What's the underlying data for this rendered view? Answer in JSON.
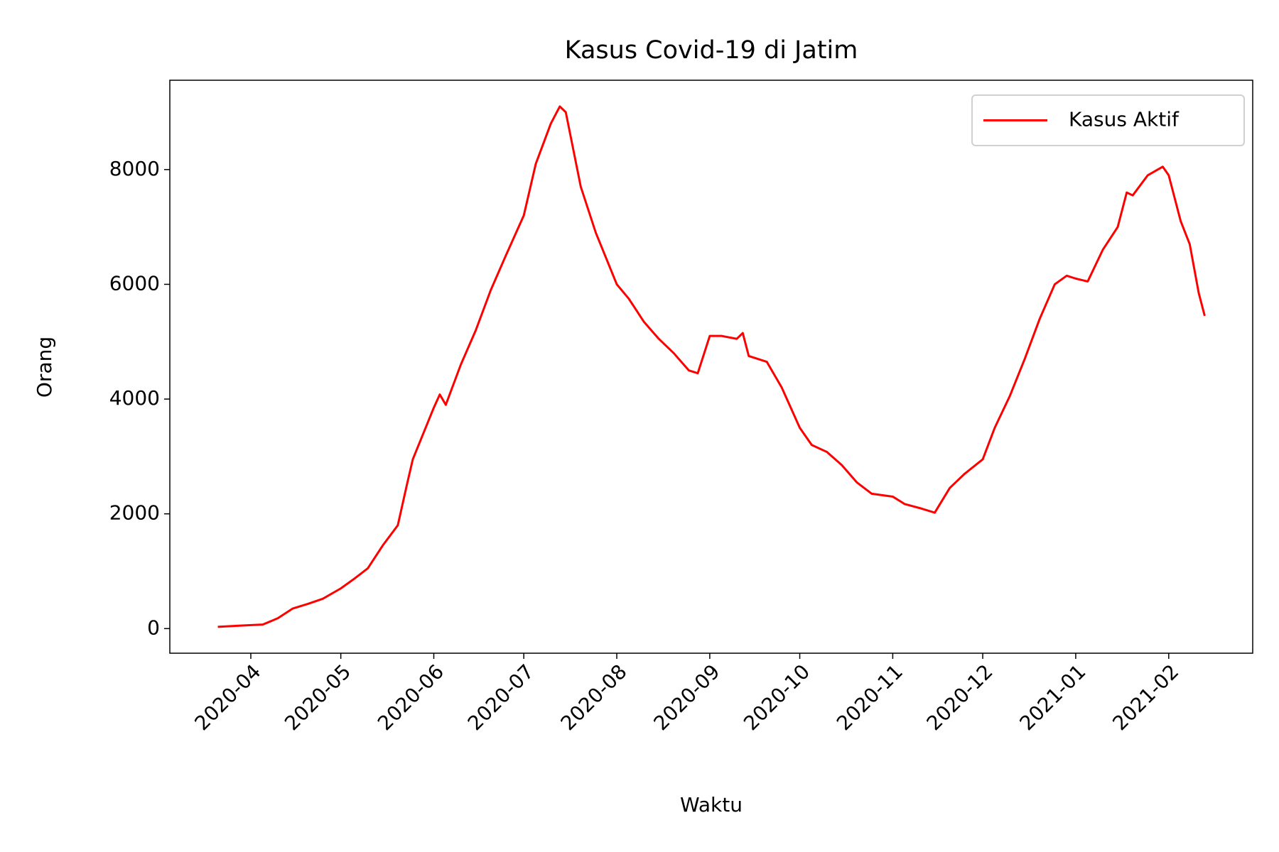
{
  "chart_data": {
    "type": "line",
    "title": "Kasus Covid-19 di Jatim",
    "xlabel": "Waktu",
    "ylabel": "Orang",
    "x": [
      "2020-03-21",
      "2020-03-28",
      "2020-04-05",
      "2020-04-10",
      "2020-04-15",
      "2020-04-20",
      "2020-04-25",
      "2020-05-01",
      "2020-05-05",
      "2020-05-10",
      "2020-05-15",
      "2020-05-20",
      "2020-05-23",
      "2020-05-25",
      "2020-06-01",
      "2020-06-03",
      "2020-06-05",
      "2020-06-10",
      "2020-06-15",
      "2020-06-20",
      "2020-06-25",
      "2020-07-01",
      "2020-07-05",
      "2020-07-10",
      "2020-07-13",
      "2020-07-15",
      "2020-07-20",
      "2020-07-25",
      "2020-08-01",
      "2020-08-05",
      "2020-08-10",
      "2020-08-15",
      "2020-08-20",
      "2020-08-25",
      "2020-08-28",
      "2020-09-01",
      "2020-09-05",
      "2020-09-10",
      "2020-09-12",
      "2020-09-14",
      "2020-09-20",
      "2020-09-25",
      "2020-10-01",
      "2020-10-05",
      "2020-10-10",
      "2020-10-15",
      "2020-10-20",
      "2020-10-25",
      "2020-11-01",
      "2020-11-05",
      "2020-11-10",
      "2020-11-15",
      "2020-11-20",
      "2020-11-25",
      "2020-12-01",
      "2020-12-05",
      "2020-12-10",
      "2020-12-15",
      "2020-12-20",
      "2020-12-25",
      "2020-12-29",
      "2021-01-01",
      "2021-01-05",
      "2021-01-10",
      "2021-01-15",
      "2021-01-18",
      "2021-01-20",
      "2021-01-25",
      "2021-01-30",
      "2021-02-01",
      "2021-02-05",
      "2021-02-08",
      "2021-02-11",
      "2021-02-13"
    ],
    "series": [
      {
        "name": "Kasus Aktif",
        "color": "#ff0000",
        "values": [
          30,
          50,
          70,
          180,
          350,
          430,
          520,
          700,
          850,
          1050,
          1450,
          1800,
          2500,
          2950,
          3850,
          4080,
          3900,
          4600,
          5200,
          5900,
          6500,
          7200,
          8100,
          8800,
          9100,
          9000,
          7700,
          6900,
          6000,
          5750,
          5350,
          5050,
          4800,
          4500,
          4450,
          5100,
          5100,
          5050,
          5150,
          4750,
          4650,
          4200,
          3500,
          3200,
          3080,
          2850,
          2550,
          2350,
          2300,
          2170,
          2100,
          2020,
          2450,
          2700,
          2950,
          3500,
          4050,
          4700,
          5400,
          6000,
          6150,
          6100,
          6050,
          6600,
          7000,
          7600,
          7550,
          7900,
          8050,
          7900,
          7100,
          6700,
          5850,
          5450
        ]
      }
    ],
    "xlim": [
      "2020-03-05",
      "2021-03-01"
    ],
    "xticks": [
      {
        "value": "2020-04-01",
        "label": "2020-04"
      },
      {
        "value": "2020-05-01",
        "label": "2020-05"
      },
      {
        "value": "2020-06-01",
        "label": "2020-06"
      },
      {
        "value": "2020-07-01",
        "label": "2020-07"
      },
      {
        "value": "2020-08-01",
        "label": "2020-08"
      },
      {
        "value": "2020-09-01",
        "label": "2020-09"
      },
      {
        "value": "2020-10-01",
        "label": "2020-10"
      },
      {
        "value": "2020-11-01",
        "label": "2020-11"
      },
      {
        "value": "2020-12-01",
        "label": "2020-12"
      },
      {
        "value": "2021-01-01",
        "label": "2021-01"
      },
      {
        "value": "2021-02-01",
        "label": "2021-02"
      }
    ],
    "ylim": [
      -429,
      9557
    ],
    "yticks": [
      0,
      2000,
      4000,
      6000,
      8000
    ],
    "grid": false,
    "legend": "upper right"
  }
}
